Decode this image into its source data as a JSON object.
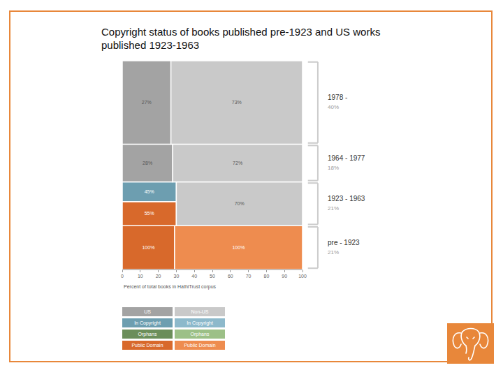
{
  "chart_data": {
    "type": "mosaic",
    "title": "Copyright status of books published pre-1923 and US works published 1923-1963",
    "x_label": "Percent of total books in HathiTrust corpus",
    "xlim": [
      0,
      100
    ],
    "xticks": [
      0,
      10,
      20,
      30,
      40,
      50,
      60,
      70,
      80,
      90,
      100
    ],
    "ylim": [
      0,
      100
    ],
    "tick_labels": "x",
    "grid": false,
    "rows": [
      {
        "label": "pre - 1923",
        "share": 21,
        "share_label": "21%",
        "columns": [
          {
            "name": "US",
            "width": 29,
            "cells": [
              {
                "status": "Public Domain",
                "value": 100,
                "value_label": "100%"
              }
            ]
          },
          {
            "name": "Non-US",
            "width": 71,
            "cells": [
              {
                "status": "Public Domain",
                "value": 100,
                "value_label": "100%"
              }
            ]
          }
        ]
      },
      {
        "label": "1923 - 1963",
        "share": 21,
        "share_label": "21%",
        "columns": [
          {
            "name": "US",
            "width": 30,
            "cells": [
              {
                "status": "Public Domain",
                "value": 55,
                "value_label": "55%"
              },
              {
                "status": "In Copyright",
                "value": 45,
                "value_label": "45%"
              }
            ]
          },
          {
            "name": "Non-US",
            "width": 70,
            "width_label": "70%"
          }
        ]
      },
      {
        "label": "1964 - 1977",
        "share": 18,
        "share_label": "18%",
        "columns": [
          {
            "name": "US",
            "width": 28,
            "width_label": "28%"
          },
          {
            "name": "Non-US",
            "width": 72,
            "width_label": "72%"
          }
        ]
      },
      {
        "label": "1978 -",
        "share": 40,
        "share_label": "40%",
        "columns": [
          {
            "name": "US",
            "width": 27,
            "width_label": "27%"
          },
          {
            "name": "Non-US",
            "width": 73,
            "width_label": "73%"
          }
        ]
      }
    ],
    "legend_table": {
      "columns": [
        {
          "name": "US",
          "color": "#a3a3a3",
          "statuses": [
            {
              "name": "In Copyright",
              "color": "#6d9eb0"
            },
            {
              "name": "Orphans",
              "color": "#6b8e5a"
            },
            {
              "name": "Public Domain",
              "color": "#d8692b"
            }
          ]
        },
        {
          "name": "Non-US",
          "color": "#c9c9c9",
          "statuses": [
            {
              "name": "In Copyright",
              "color": "#8db9cb"
            },
            {
              "name": "Orphans",
              "color": "#9cc087"
            },
            {
              "name": "Public Domain",
              "color": "#ee8c4f"
            }
          ]
        }
      ]
    }
  }
}
